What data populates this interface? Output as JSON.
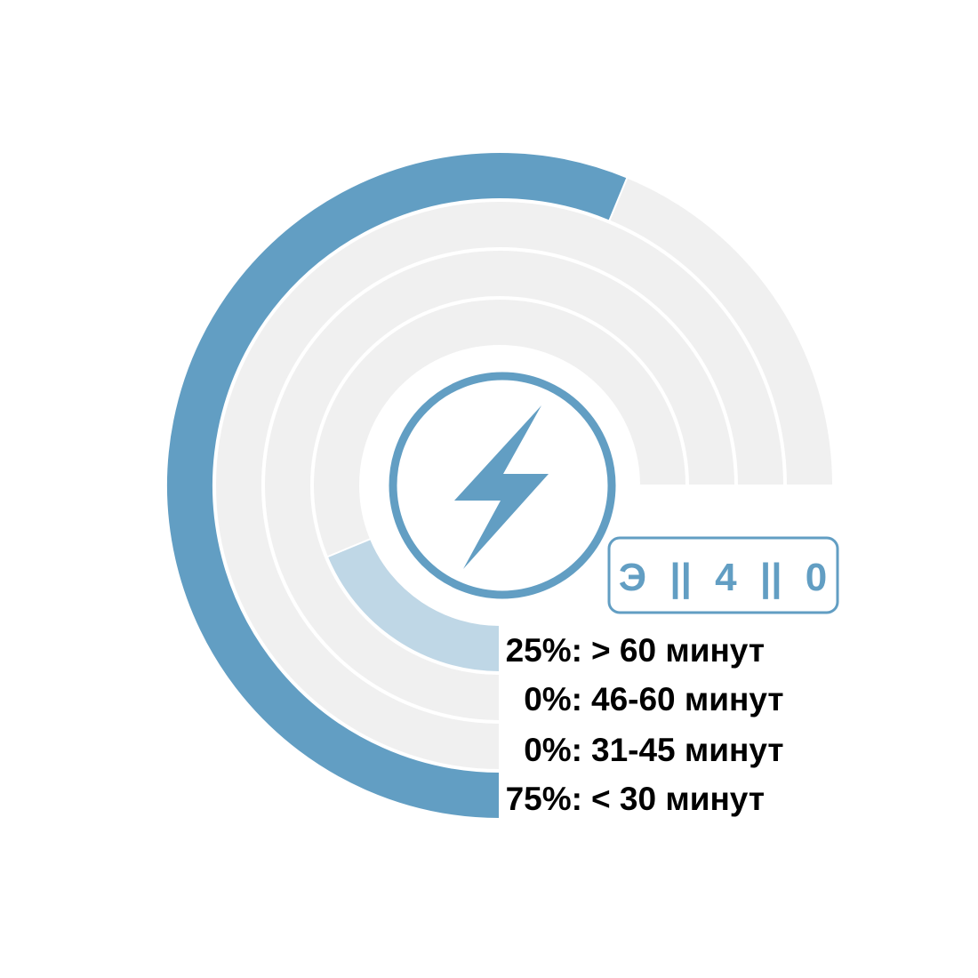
{
  "chart_data": {
    "type": "radial-bar",
    "max_percent": 100,
    "arc_span_degrees": 270,
    "rings": [
      {
        "label": "< 30 минут",
        "percent_text": "75%:",
        "value": 75
      },
      {
        "label": "31-45 минут",
        "percent_text": "0%:",
        "value": 0
      },
      {
        "label": "46-60 минут",
        "percent_text": "0%:",
        "value": 0
      },
      {
        "label": "> 60 минут",
        "percent_text": "25%:",
        "value": 25
      }
    ],
    "colors": {
      "track": "#f0f0f0",
      "outer_fill": "#629ec3",
      "inner_fill": "#bfd7e6",
      "accent": "#629ec3"
    }
  },
  "badge": {
    "parts": [
      "Э",
      "||",
      "4",
      "||",
      "0"
    ]
  },
  "center_icon": "lightning-bolt-icon"
}
